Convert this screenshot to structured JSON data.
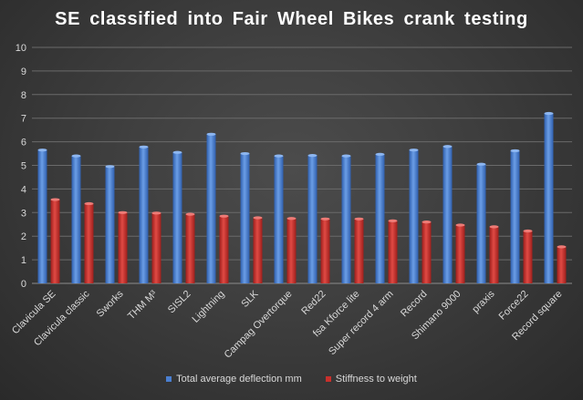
{
  "chart_data": {
    "type": "bar",
    "title": "SE classified  into  Fair  Wheel  Bikes  crank  testing",
    "categories": [
      "Clavicula SE",
      "Clavicula classic",
      "Sworks",
      "THM M³",
      "SISL2",
      "Lightning",
      "SLK",
      "Campag Overtorque",
      "Red22",
      "fsa Kforce lite",
      "Super record 4 arm",
      "Record",
      "Shimano 9000",
      "praxis",
      "Force22",
      "Record square"
    ],
    "series": [
      {
        "name": "Total average deflection mm",
        "color": "#4a7fd0",
        "values": [
          5.65,
          5.4,
          4.95,
          5.78,
          5.55,
          6.32,
          5.5,
          5.4,
          5.42,
          5.4,
          5.47,
          5.65,
          5.8,
          5.05,
          5.62,
          7.2
        ]
      },
      {
        "name": "Stiffness to weight",
        "color": "#c8302c",
        "values": [
          3.55,
          3.38,
          3.0,
          2.98,
          2.93,
          2.85,
          2.78,
          2.75,
          2.73,
          2.73,
          2.65,
          2.6,
          2.47,
          2.4,
          2.22,
          1.55
        ]
      }
    ],
    "yticks": [
      "0",
      "1",
      "2",
      "3",
      "4",
      "5",
      "6",
      "7",
      "8",
      "9",
      "10"
    ],
    "ylim": [
      0,
      10
    ],
    "grid": true,
    "legend": "bottom"
  }
}
